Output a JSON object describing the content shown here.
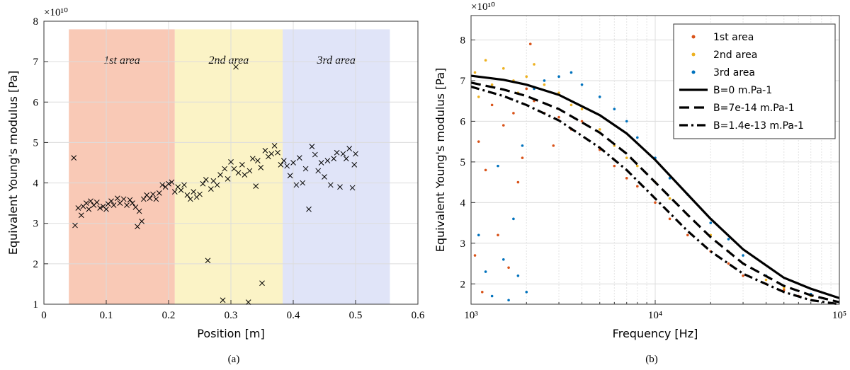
{
  "chart_data": [
    {
      "type": "scatter",
      "xlabel": "Position [m]",
      "ylabel": "Equivalent Young's modulus [Pa]",
      "offset_label": "×10¹⁰",
      "caption": "(a)",
      "xlim": [
        0,
        0.6
      ],
      "xticks": [
        0,
        0.1,
        0.2,
        0.3,
        0.4,
        0.5,
        0.6
      ],
      "ylim": [
        1,
        8
      ],
      "yticks": [
        1,
        2,
        3,
        4,
        5,
        6,
        7,
        8
      ],
      "grid": true,
      "regions": [
        {
          "label": "1st area",
          "span": [
            0.04,
            0.21
          ],
          "top": 7.8,
          "color": "#f9c9b6"
        },
        {
          "label": "2nd area",
          "span": [
            0.21,
            0.383
          ],
          "top": 7.8,
          "color": "#fbf3c6"
        },
        {
          "label": "3rd area",
          "span": [
            0.383,
            0.555
          ],
          "top": 7.8,
          "color": "#e0e4f8"
        }
      ],
      "series": [
        {
          "color": "#000000",
          "marker": "x",
          "x": [
            0.048,
            0.05,
            0.055,
            0.06,
            0.063,
            0.068,
            0.072,
            0.075,
            0.08,
            0.085,
            0.09,
            0.095,
            0.1,
            0.103,
            0.108,
            0.112,
            0.118,
            0.122,
            0.128,
            0.133,
            0.138,
            0.142,
            0.147,
            0.15,
            0.153,
            0.157,
            0.16,
            0.165,
            0.17,
            0.175,
            0.18,
            0.185,
            0.19,
            0.195,
            0.2,
            0.205,
            0.21,
            0.215,
            0.22,
            0.225,
            0.23,
            0.235,
            0.24,
            0.245,
            0.25,
            0.255,
            0.26,
            0.263,
            0.268,
            0.272,
            0.278,
            0.283,
            0.287,
            0.29,
            0.295,
            0.3,
            0.305,
            0.308,
            0.312,
            0.318,
            0.322,
            0.328,
            0.33,
            0.335,
            0.34,
            0.343,
            0.348,
            0.35,
            0.355,
            0.36,
            0.365,
            0.37,
            0.375,
            0.38,
            0.385,
            0.39,
            0.395,
            0.4,
            0.405,
            0.41,
            0.415,
            0.42,
            0.425,
            0.43,
            0.435,
            0.44,
            0.445,
            0.45,
            0.455,
            0.46,
            0.465,
            0.47,
            0.475,
            0.48,
            0.485,
            0.49,
            0.495,
            0.498,
            0.5
          ],
          "values": [
            4.62,
            2.95,
            3.38,
            3.2,
            3.42,
            3.5,
            3.35,
            3.55,
            3.45,
            3.52,
            3.38,
            3.42,
            3.35,
            3.48,
            3.55,
            3.45,
            3.62,
            3.5,
            3.6,
            3.45,
            3.58,
            3.5,
            3.4,
            2.92,
            3.3,
            3.05,
            3.6,
            3.7,
            3.62,
            3.72,
            3.6,
            3.75,
            3.95,
            3.9,
            3.98,
            4.02,
            3.78,
            3.9,
            3.82,
            3.95,
            3.7,
            3.6,
            3.78,
            3.65,
            3.72,
            3.98,
            4.08,
            2.08,
            3.85,
            4.05,
            3.95,
            4.2,
            1.1,
            4.35,
            4.1,
            4.52,
            4.35,
            6.87,
            4.25,
            4.45,
            4.2,
            1.05,
            4.3,
            4.6,
            3.92,
            4.55,
            4.38,
            1.52,
            4.8,
            4.65,
            4.72,
            4.92,
            4.75,
            4.45,
            4.55,
            4.42,
            4.18,
            4.5,
            3.95,
            4.62,
            4.0,
            4.35,
            3.35,
            4.9,
            4.7,
            4.3,
            4.5,
            4.15,
            4.55,
            3.95,
            4.6,
            4.75,
            3.9,
            4.72,
            4.6,
            4.85,
            3.88,
            4.45,
            4.72
          ]
        }
      ]
    },
    {
      "type": "scatter",
      "xlabel": "Frequency [Hz]",
      "ylabel": "Equivalent Young's modulus [Pa]",
      "offset_label": "×10¹⁰",
      "caption": "(b)",
      "xlog": true,
      "xlim": [
        1000,
        100000
      ],
      "xticks": [
        {
          "value": 1000,
          "label": "10³"
        },
        {
          "value": 10000,
          "label": "10⁴"
        },
        {
          "value": 100000,
          "label": "10⁵"
        }
      ],
      "minor_xticks": [
        2000,
        3000,
        4000,
        5000,
        6000,
        7000,
        8000,
        9000,
        20000,
        30000,
        40000,
        50000,
        60000,
        70000,
        80000,
        90000
      ],
      "ylim": [
        1.5,
        8.6
      ],
      "yticks": [
        2,
        3,
        4,
        5,
        6,
        7,
        8
      ],
      "grid": true,
      "legend": "northeast",
      "series": [
        {
          "name": "1st  area",
          "color": "#d95319",
          "marker": "dot",
          "x": [
            1050,
            1100,
            1150,
            1200,
            1300,
            1400,
            1500,
            1600,
            1700,
            1800,
            1900,
            2000,
            2100,
            2200,
            2500,
            2800,
            3000,
            3500,
            4000,
            5000,
            6000,
            7000,
            8000,
            10000,
            12000,
            15000,
            20000,
            25000,
            30000,
            40000,
            50000,
            60000
          ],
          "values": [
            2.7,
            5.5,
            1.8,
            4.8,
            6.4,
            3.2,
            5.9,
            2.4,
            6.2,
            4.5,
            5.1,
            6.8,
            7.9,
            6.5,
            6.2,
            5.4,
            6.1,
            5.8,
            6.0,
            5.3,
            4.9,
            4.6,
            4.4,
            4.0,
            3.6,
            3.2,
            2.8,
            2.5,
            2.2,
            2.0,
            1.85,
            1.7
          ]
        },
        {
          "name": "2nd  area",
          "color": "#edb120",
          "marker": "dot",
          "x": [
            1050,
            1100,
            1200,
            1300,
            1500,
            1700,
            1800,
            2000,
            2200,
            2500,
            3000,
            3500,
            4000,
            5000,
            6000,
            7000,
            8000,
            10000,
            12000,
            15000,
            20000,
            25000,
            30000,
            40000,
            50000,
            70000
          ],
          "values": [
            7.2,
            6.6,
            7.5,
            6.9,
            7.3,
            7.0,
            6.7,
            7.1,
            7.4,
            6.9,
            6.7,
            6.4,
            6.3,
            5.8,
            5.4,
            5.1,
            4.9,
            4.5,
            4.1,
            3.7,
            3.2,
            2.8,
            2.5,
            2.1,
            1.9,
            1.7
          ]
        },
        {
          "name": "3rd  area",
          "color": "#0072bd",
          "marker": "dot",
          "x": [
            1100,
            1200,
            1300,
            1400,
            1500,
            1600,
            1700,
            1800,
            1900,
            2000,
            2200,
            2500,
            3000,
            3500,
            4000,
            5000,
            6000,
            7000,
            8000,
            10000,
            12000,
            15000,
            20000,
            25000,
            30000,
            40000,
            50000,
            70000
          ],
          "values": [
            3.2,
            2.3,
            1.7,
            4.9,
            2.6,
            1.6,
            3.6,
            2.2,
            5.4,
            1.8,
            6.8,
            7.0,
            7.1,
            7.2,
            6.9,
            6.6,
            6.3,
            6.0,
            5.6,
            5.1,
            4.6,
            4.2,
            3.5,
            3.1,
            2.7,
            2.2,
            1.95,
            1.75
          ]
        },
        {
          "name": "B=0 m.Pa-1",
          "color": "#000000",
          "mode": "line",
          "style": "solid",
          "x": [
            1000,
            1500,
            2000,
            3000,
            5000,
            7000,
            10000,
            15000,
            20000,
            30000,
            50000,
            70000,
            100000
          ],
          "values": [
            7.12,
            7.02,
            6.9,
            6.65,
            6.15,
            5.7,
            5.05,
            4.2,
            3.6,
            2.85,
            2.15,
            1.88,
            1.65
          ]
        },
        {
          "name": "B=7e-14 m.Pa-1",
          "color": "#000000",
          "mode": "line",
          "style": "dash",
          "x": [
            1000,
            1500,
            2000,
            3000,
            5000,
            7000,
            10000,
            15000,
            20000,
            30000,
            50000,
            70000,
            100000
          ],
          "values": [
            6.95,
            6.78,
            6.62,
            6.3,
            5.72,
            5.2,
            4.5,
            3.7,
            3.15,
            2.5,
            1.95,
            1.72,
            1.55
          ]
        },
        {
          "name": "B=1.4e-13 m.Pa-1",
          "color": "#000000",
          "mode": "line",
          "style": "dashdot",
          "x": [
            1000,
            1500,
            2000,
            3000,
            5000,
            7000,
            10000,
            15000,
            20000,
            30000,
            50000,
            70000,
            100000
          ],
          "values": [
            6.85,
            6.62,
            6.4,
            6.02,
            5.35,
            4.8,
            4.1,
            3.3,
            2.8,
            2.25,
            1.8,
            1.6,
            1.5
          ]
        }
      ]
    }
  ]
}
